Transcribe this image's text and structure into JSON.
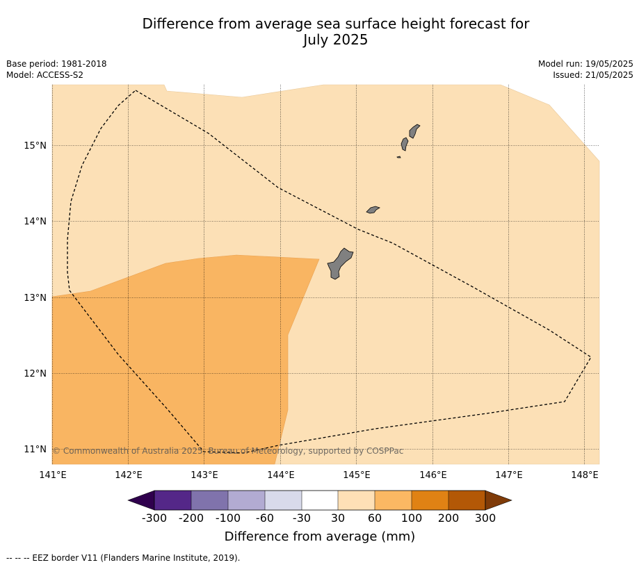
{
  "title_line1": "Difference from average sea surface height forecast for",
  "title_line2": "July 2025",
  "base_period": "Base period: 1981-2018",
  "model": "Model: ACCESS-S2",
  "model_run": "Model run: 19/05/2025",
  "issued": "Issued: 21/05/2025",
  "copyright": "© Commonwealth of Australia 2025, Bureau of Meteorology, supported by COSPPac",
  "footnote": "--  --  -- EEZ border V11 (Flanders Marine Institute, 2019).",
  "map": {
    "lon_ticks": [
      "141°E",
      "142°E",
      "143°E",
      "144°E",
      "145°E",
      "146°E",
      "147°E",
      "148°E"
    ],
    "lat_ticks": [
      "15°N",
      "14°N",
      "13°N",
      "12°N",
      "11°N"
    ],
    "lon_range": [
      141,
      148.2
    ],
    "lat_range": [
      10.8,
      15.8
    ],
    "gridlines": true,
    "land_color": "#808080",
    "boundary": "EEZ border (dashed)",
    "regions": [
      {
        "category": "30 to 60",
        "color": "#fce0b6",
        "location": "north and east, most of map"
      },
      {
        "category": "60 to 100",
        "color": "#f9b562",
        "location": "south-west"
      }
    ]
  },
  "colorbar": {
    "title": "Difference from average (mm)",
    "tick_labels": [
      "-300",
      "-200",
      "-100",
      "-60",
      "-30",
      "30",
      "60",
      "100",
      "200",
      "300"
    ],
    "colors": [
      "#2f004d",
      "#542788",
      "#8073ac",
      "#b2abd2",
      "#d8daeb",
      "#ffffff",
      "#fee0b6",
      "#fbb863",
      "#e08214",
      "#b35806",
      "#7f3b08"
    ]
  },
  "chart_data": {
    "type": "heatmap",
    "title": "Difference from average sea surface height forecast for July 2025",
    "xlabel": "",
    "ylabel": "",
    "x_range": [
      141,
      148.2
    ],
    "y_range": [
      10.8,
      15.8
    ],
    "x_ticks": [
      "141°E",
      "142°E",
      "143°E",
      "144°E",
      "145°E",
      "146°E",
      "147°E",
      "148°E"
    ],
    "y_ticks": [
      "15°N",
      "14°N",
      "13°N",
      "12°N",
      "11°N"
    ],
    "color_bins": [
      "-300",
      "-200",
      "-100",
      "-60",
      "-30",
      "30",
      "60",
      "100",
      "200",
      "300"
    ],
    "colorbar_label": "Difference from average (mm)",
    "grid": true
  }
}
